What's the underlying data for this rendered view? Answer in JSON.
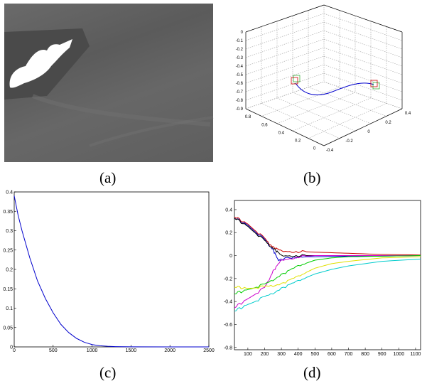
{
  "captions": {
    "a": "(a)",
    "b": "(b)",
    "c": "(c)",
    "d": "(d)"
  },
  "colors": {
    "background": "#ffffff",
    "axis": "#000000",
    "grid": "#888888"
  },
  "chart_data": [
    {
      "panel": "a",
      "type": "other",
      "description_visible": "grayscale camera frame",
      "tick_labels": []
    },
    {
      "panel": "b",
      "type": "line",
      "projection": "3d",
      "grid": true,
      "z_ticks": [
        "0",
        "-0.1",
        "-0.2",
        "-0.3",
        "-0.4",
        "-0.5",
        "-0.6",
        "-0.7",
        "-0.8",
        "-0.9"
      ],
      "x_ticks": [
        "0.8",
        "0.6",
        "0.4",
        "0.2",
        "0"
      ],
      "y_ticks": [
        "-0.4",
        "-0.2",
        "0",
        "0.2",
        "0.4"
      ],
      "series": [
        {
          "color": "#0000cc",
          "points": [
            [
              0.55,
              -0.3,
              -0.55
            ],
            [
              0.5,
              -0.2,
              -0.62
            ],
            [
              0.42,
              -0.05,
              -0.68
            ],
            [
              0.35,
              0.05,
              -0.66
            ],
            [
              0.28,
              0.15,
              -0.6
            ],
            [
              0.22,
              0.25,
              -0.58
            ]
          ]
        }
      ],
      "markers": [
        {
          "color": "#cc0000",
          "position": "start"
        },
        {
          "color": "#009900",
          "position": "end"
        }
      ]
    },
    {
      "panel": "c",
      "type": "line",
      "xlim": [
        0,
        2500
      ],
      "ylim": [
        0,
        0.4
      ],
      "x_ticks": [
        "0",
        "500",
        "1000",
        "1500",
        "2000",
        "2500"
      ],
      "y_ticks": [
        "0.4",
        "0.35",
        "0.3",
        "0.25",
        "0.2",
        "0.15",
        "0.1",
        "0.05",
        "0"
      ],
      "series": [
        {
          "color": "#0000cc",
          "x": [
            0,
            50,
            100,
            200,
            300,
            400,
            500,
            600,
            700,
            800,
            900,
            1000,
            1100,
            1200,
            1300,
            1400,
            1500,
            2000,
            2500
          ],
          "y": [
            0.39,
            0.34,
            0.3,
            0.23,
            0.17,
            0.125,
            0.088,
            0.058,
            0.037,
            0.022,
            0.012,
            0.006,
            0.003,
            0.0015,
            0.0008,
            0.0004,
            0.0002,
            0,
            0
          ]
        }
      ]
    },
    {
      "panel": "d",
      "type": "line",
      "xlim": [
        20,
        1130
      ],
      "ylim": [
        -0.82,
        0.48
      ],
      "x_ticks": [
        "100",
        "200",
        "300",
        "400",
        "500",
        "600",
        "700",
        "800",
        "900",
        "1000",
        "1100"
      ],
      "y_ticks": [
        "0.4",
        "0.2",
        "0",
        "-0.2",
        "-0.4",
        "-0.6",
        "-0.8"
      ],
      "series": [
        {
          "color": "#cc0000",
          "x": [
            20,
            100,
            200,
            250,
            300,
            400,
            500,
            700,
            900,
            1130
          ],
          "y": [
            0.34,
            0.27,
            0.15,
            0.07,
            0.04,
            0.035,
            0.03,
            0.02,
            0.01,
            0.005
          ]
        },
        {
          "color": "#0000cc",
          "x": [
            20,
            100,
            200,
            250,
            280,
            300,
            400,
            500,
            700,
            900,
            1130
          ],
          "y": [
            0.33,
            0.26,
            0.14,
            0.05,
            -0.04,
            -0.03,
            -0.01,
            -0.01,
            -0.005,
            -0.005,
            0
          ]
        },
        {
          "color": "#000000",
          "x": [
            20,
            100,
            200,
            260,
            300,
            400,
            500,
            700,
            900,
            1130
          ],
          "y": [
            0.33,
            0.25,
            0.13,
            0.05,
            0.0,
            0.0,
            0.0,
            0.0,
            0.0,
            0.0
          ]
        },
        {
          "color": "#cc00cc",
          "x": [
            20,
            100,
            200,
            250,
            300,
            400,
            500,
            700,
            900,
            1130
          ],
          "y": [
            -0.45,
            -0.38,
            -0.28,
            -0.14,
            -0.04,
            -0.01,
            0.0,
            0.0,
            0.0,
            0.0
          ]
        },
        {
          "color": "#00cc00",
          "x": [
            20,
            100,
            200,
            300,
            400,
            500,
            600,
            700,
            900,
            1130
          ],
          "y": [
            -0.33,
            -0.3,
            -0.25,
            -0.17,
            -0.09,
            -0.04,
            -0.02,
            -0.01,
            -0.005,
            0
          ]
        },
        {
          "color": "#e0e000",
          "x": [
            20,
            100,
            200,
            300,
            400,
            500,
            600,
            700,
            900,
            1130
          ],
          "y": [
            -0.27,
            -0.29,
            -0.27,
            -0.25,
            -0.18,
            -0.11,
            -0.07,
            -0.05,
            -0.02,
            -0.01
          ]
        },
        {
          "color": "#00cccc",
          "x": [
            20,
            100,
            200,
            300,
            400,
            500,
            600,
            700,
            900,
            1130
          ],
          "y": [
            -0.48,
            -0.43,
            -0.36,
            -0.29,
            -0.22,
            -0.16,
            -0.12,
            -0.09,
            -0.05,
            -0.03
          ]
        }
      ]
    }
  ]
}
